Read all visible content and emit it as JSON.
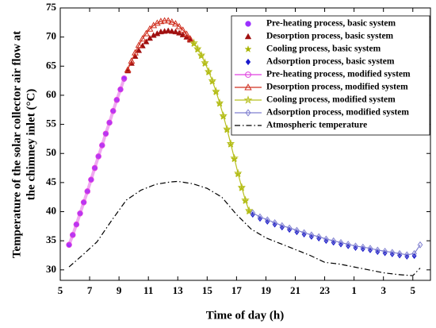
{
  "chart_data": {
    "type": "line",
    "xlabel": "Time of day (h)",
    "ylabel": [
      "Temperature of the solar collector air flow at",
      "the chimney inlet (°C)"
    ],
    "xlim": [
      5,
      30.2
    ],
    "ylim": [
      28.2,
      75
    ],
    "xticks": [
      5,
      7,
      9,
      11,
      13,
      15,
      17,
      19,
      21,
      23,
      {
        "value": 25,
        "label": "1"
      },
      {
        "value": 27,
        "label": "3"
      },
      {
        "value": 29,
        "label": "5"
      }
    ],
    "yticks": [
      30,
      35,
      40,
      45,
      50,
      55,
      60,
      65,
      70,
      75
    ],
    "legend": "upper right",
    "series": [
      {
        "name": "Pre-heating process, basic system",
        "color": "#9b30ff",
        "marker": "circle",
        "filled": true,
        "line": false,
        "x": [
          5.6,
          5.85,
          6.1,
          6.35,
          6.6,
          6.85,
          7.1,
          7.35,
          7.6,
          7.85,
          8.1,
          8.35,
          8.6,
          8.85,
          9.1,
          9.35
        ],
        "values": [
          34.3,
          36,
          37.8,
          39.7,
          41.6,
          43.5,
          45.5,
          47.5,
          49.5,
          51.4,
          53.4,
          55.3,
          57.3,
          59.2,
          61,
          62.8
        ]
      },
      {
        "name": "Desorption process, basic system",
        "color": "#a01010",
        "marker": "triangle",
        "filled": true,
        "line": false,
        "x": [
          9.6,
          9.85,
          10.1,
          10.35,
          10.6,
          10.85,
          11.1,
          11.35,
          11.6,
          11.85,
          12.1,
          12.35,
          12.6,
          12.85,
          13.1,
          13.35,
          13.6,
          13.85
        ],
        "values": [
          64.2,
          65.5,
          66.7,
          67.7,
          68.5,
          69.2,
          69.8,
          70.3,
          70.6,
          70.9,
          71.0,
          71.1,
          71.0,
          70.9,
          70.7,
          70.4,
          70.0,
          69.5
        ]
      },
      {
        "name": "Cooling process, basic system",
        "color": "#a8b400",
        "marker": "star",
        "filled": true,
        "line": false,
        "x": [
          14.1,
          14.35,
          14.6,
          14.85,
          15.1,
          15.35,
          15.6,
          15.85,
          16.1,
          16.35,
          16.6,
          16.85,
          17.1,
          17.35,
          17.6,
          17.85
        ],
        "values": [
          68.8,
          67.8,
          66.7,
          65.4,
          63.9,
          62.3,
          60.5,
          58.5,
          56.3,
          54,
          51.5,
          49,
          46.4,
          44,
          41.8,
          40
        ]
      },
      {
        "name": "Adsorption process, basic system",
        "color": "#1a1acd",
        "marker": "diamond",
        "filled": true,
        "line": false,
        "x": [
          18.1,
          18.6,
          19.1,
          19.6,
          20.1,
          20.6,
          21.1,
          21.6,
          22.1,
          22.6,
          23.1,
          23.6,
          24.1,
          24.6,
          25.1,
          25.6,
          26.1,
          26.6,
          27.1,
          27.6,
          28.1,
          28.6,
          29.1
        ],
        "values": [
          39.5,
          38.8,
          38.3,
          37.8,
          37.3,
          36.9,
          36.5,
          36.1,
          35.7,
          35.4,
          35.0,
          34.7,
          34.4,
          34.1,
          33.8,
          33.6,
          33.4,
          33.1,
          32.9,
          32.7,
          32.5,
          32.3,
          32.4
        ]
      },
      {
        "name": "Pre-heating process, modified system",
        "color": "#e040e0",
        "marker": "circle",
        "filled": false,
        "line": true,
        "x": [
          5.6,
          5.85,
          6.1,
          6.35,
          6.6,
          6.85,
          7.1,
          7.35,
          7.6,
          7.85,
          8.1,
          8.35,
          8.6,
          8.85,
          9.1,
          9.35
        ],
        "values": [
          34.3,
          36,
          37.8,
          39.7,
          41.6,
          43.5,
          45.5,
          47.5,
          49.5,
          51.4,
          53.4,
          55.3,
          57.3,
          59.2,
          61,
          62.9
        ]
      },
      {
        "name": "Desorption process, modified system",
        "color": "#d03020",
        "marker": "triangle",
        "filled": false,
        "line": true,
        "x": [
          9.6,
          9.85,
          10.1,
          10.35,
          10.6,
          10.85,
          11.1,
          11.35,
          11.6,
          11.85,
          12.1,
          12.35,
          12.6,
          12.85,
          13.1,
          13.35,
          13.6,
          13.85
        ],
        "values": [
          64.4,
          65.9,
          67.3,
          68.6,
          69.7,
          70.6,
          71.4,
          72.0,
          72.4,
          72.7,
          72.8,
          72.8,
          72.6,
          72.3,
          71.8,
          71.2,
          70.5,
          69.7
        ]
      },
      {
        "name": "Cooling process, modified system",
        "color": "#b8c020",
        "marker": "star",
        "filled": false,
        "line": true,
        "x": [
          14.1,
          14.35,
          14.6,
          14.85,
          15.1,
          15.35,
          15.6,
          15.85,
          16.1,
          16.35,
          16.6,
          16.85,
          17.1,
          17.35,
          17.6,
          17.85
        ],
        "values": [
          69,
          68,
          66.9,
          65.6,
          64.1,
          62.5,
          60.7,
          58.7,
          56.5,
          54.2,
          51.7,
          49.2,
          46.6,
          44.2,
          42,
          40.2
        ]
      },
      {
        "name": "Adsorption process, modified system",
        "color": "#8080d0",
        "marker": "diamond",
        "filled": false,
        "line": true,
        "x": [
          18.1,
          18.6,
          19.1,
          19.6,
          20.1,
          20.6,
          21.1,
          21.6,
          22.1,
          22.6,
          23.1,
          23.6,
          24.1,
          24.6,
          25.1,
          25.6,
          26.1,
          26.6,
          27.1,
          27.6,
          28.1,
          28.6,
          29.1,
          29.5
        ],
        "values": [
          39.8,
          39.1,
          38.6,
          38.1,
          37.6,
          37.2,
          36.8,
          36.4,
          36.0,
          35.7,
          35.3,
          35.0,
          34.7,
          34.4,
          34.1,
          33.9,
          33.7,
          33.4,
          33.2,
          33.0,
          32.8,
          32.6,
          32.8,
          34.3
        ]
      },
      {
        "name": "Atmospheric temperature",
        "color": "#000000",
        "marker": "none",
        "filled": false,
        "line": true,
        "dash": "dashdot",
        "x": [
          5.6,
          6.5,
          7.5,
          8.5,
          9.5,
          10.5,
          11.5,
          12.5,
          13,
          14,
          15,
          16,
          17,
          18,
          19,
          20,
          21,
          22,
          23,
          24,
          25,
          26,
          27,
          28,
          29,
          29.5
        ],
        "values": [
          30.5,
          32.5,
          34.8,
          38.5,
          42,
          43.7,
          44.7,
          45.1,
          45.2,
          44.8,
          44,
          42.5,
          39.5,
          37,
          35.5,
          34.5,
          33.5,
          32.5,
          31.3,
          31,
          30.5,
          30,
          29.5,
          29.2,
          29,
          30.3
        ]
      }
    ]
  }
}
